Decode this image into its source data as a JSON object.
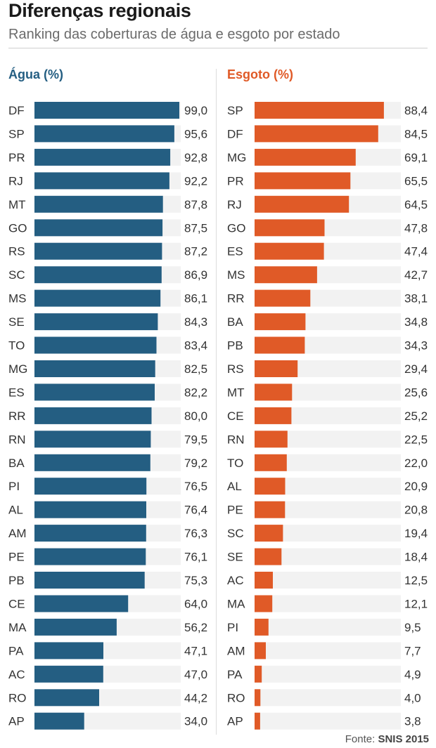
{
  "header": {
    "title": "Diferenças regionais",
    "subtitle": "Ranking das coberturas de água e esgoto por estado"
  },
  "colors": {
    "agua": "#245e82",
    "esgoto": "#e05a27",
    "track": "#f2f2f2",
    "label": "#333333"
  },
  "chart_data": [
    {
      "type": "bar",
      "orientation": "horizontal",
      "title": "Água (%)",
      "xlim": [
        0,
        100
      ],
      "categories": [
        "DF",
        "SP",
        "PR",
        "RJ",
        "MT",
        "GO",
        "RS",
        "SC",
        "MS",
        "SE",
        "TO",
        "MG",
        "ES",
        "RR",
        "RN",
        "BA",
        "PI",
        "AL",
        "AM",
        "PE",
        "PB",
        "CE",
        "MA",
        "PA",
        "AC",
        "RO",
        "AP"
      ],
      "values": [
        99.0,
        95.6,
        92.8,
        92.2,
        87.8,
        87.5,
        87.2,
        86.9,
        86.1,
        84.3,
        83.4,
        82.5,
        82.2,
        80.0,
        79.5,
        79.2,
        76.5,
        76.4,
        76.3,
        76.1,
        75.3,
        64.0,
        56.2,
        47.1,
        47.0,
        44.2,
        34.0
      ],
      "value_labels": [
        "99,0",
        "95,6",
        "92,8",
        "92,2",
        "87,8",
        "87,5",
        "87,2",
        "86,9",
        "86,1",
        "84,3",
        "83,4",
        "82,5",
        "82,2",
        "80,0",
        "79,5",
        "79,2",
        "76,5",
        "76,4",
        "76,3",
        "76,1",
        "75,3",
        "64,0",
        "56,2",
        "47,1",
        "47,0",
        "44,2",
        "34,0"
      ]
    },
    {
      "type": "bar",
      "orientation": "horizontal",
      "title": "Esgoto (%)",
      "xlim": [
        0,
        100
      ],
      "categories": [
        "SP",
        "DF",
        "MG",
        "PR",
        "RJ",
        "GO",
        "ES",
        "MS",
        "RR",
        "BA",
        "PB",
        "RS",
        "MT",
        "CE",
        "RN",
        "TO",
        "AL",
        "PE",
        "SC",
        "SE",
        "AC",
        "MA",
        "PI",
        "AM",
        "PA",
        "RO",
        "AP"
      ],
      "values": [
        88.4,
        84.5,
        69.1,
        65.5,
        64.5,
        47.8,
        47.4,
        42.7,
        38.1,
        34.8,
        34.3,
        29.4,
        25.6,
        25.2,
        22.5,
        22.0,
        20.9,
        20.8,
        19.4,
        18.4,
        12.5,
        12.1,
        9.5,
        7.7,
        4.9,
        4.0,
        3.8
      ],
      "value_labels": [
        "88,4",
        "84,5",
        "69,1",
        "65,5",
        "64,5",
        "47,8",
        "47,4",
        "42,7",
        "38,1",
        "34,8",
        "34,3",
        "29,4",
        "25,6",
        "25,2",
        "22,5",
        "22,0",
        "20,9",
        "20,8",
        "19,4",
        "18,4",
        "12,5",
        "12,1",
        "9,5",
        "7,7",
        "4,9",
        "4,0",
        "3,8"
      ]
    }
  ],
  "footer": {
    "source_prefix": "Fonte: ",
    "source_name": "SNIS 2015"
  }
}
